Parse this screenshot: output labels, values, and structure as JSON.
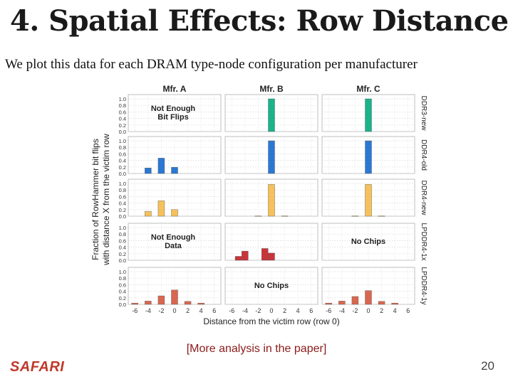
{
  "slide": {
    "title": "4. Spatial Effects: Row Distance",
    "subtitle": "We plot this data for each DRAM type-node configuration per manufacturer",
    "note": "[More analysis in the paper]",
    "logo": "SAFARI",
    "page_number": "20"
  },
  "chart_data": {
    "type": "bar",
    "xlabel": "Distance from the victim row (row 0)",
    "ylabel_lines": [
      "Fraction of RowHammer bit flips",
      "with distance X from the victim row"
    ],
    "columns": [
      "Mfr. A",
      "Mfr. B",
      "Mfr. C"
    ],
    "rows": [
      "DDR3-new",
      "DDR4-old",
      "DDR4-new",
      "LPDDR4-1x",
      "LPDDR4-1y"
    ],
    "x_ticks": [
      -6,
      -4,
      -2,
      0,
      2,
      4,
      6
    ],
    "y_ticks": [
      "0.0",
      "0.2",
      "0.4",
      "0.6",
      "0.8",
      "1.0"
    ],
    "ylim": [
      0,
      1
    ],
    "row_colors": [
      "#1ab38a",
      "#2b78d4",
      "#f6c15a",
      "#c9343a",
      "#d9674f"
    ],
    "panels": [
      {
        "row": 0,
        "col": 0,
        "message": [
          "Not Enough",
          "Bit Flips"
        ],
        "bars": []
      },
      {
        "row": 0,
        "col": 1,
        "bars": [
          [
            0,
            1.0
          ]
        ]
      },
      {
        "row": 0,
        "col": 2,
        "bars": [
          [
            0,
            1.0
          ]
        ]
      },
      {
        "row": 1,
        "col": 0,
        "bars": [
          [
            -4,
            0.17
          ],
          [
            -2,
            0.47
          ],
          [
            0,
            0.19
          ]
        ]
      },
      {
        "row": 1,
        "col": 1,
        "bars": [
          [
            0,
            1.0
          ]
        ]
      },
      {
        "row": 1,
        "col": 2,
        "bars": [
          [
            0,
            1.0
          ]
        ]
      },
      {
        "row": 2,
        "col": 0,
        "bars": [
          [
            -4,
            0.15
          ],
          [
            -2,
            0.47
          ],
          [
            0,
            0.2
          ]
        ]
      },
      {
        "row": 2,
        "col": 1,
        "bars": [
          [
            -2,
            0.01
          ],
          [
            0,
            0.97
          ],
          [
            2,
            0.01
          ]
        ]
      },
      {
        "row": 2,
        "col": 2,
        "bars": [
          [
            -2,
            0.01
          ],
          [
            0,
            0.97
          ],
          [
            2,
            0.01
          ]
        ]
      },
      {
        "row": 3,
        "col": 0,
        "message": [
          "Not Enough",
          "Data"
        ],
        "bars": []
      },
      {
        "row": 3,
        "col": 1,
        "bars": [
          [
            -5,
            0.12
          ],
          [
            -4,
            0.28
          ],
          [
            -1,
            0.36
          ],
          [
            0,
            0.22
          ]
        ]
      },
      {
        "row": 3,
        "col": 2,
        "message": [
          "No Chips"
        ],
        "bars": []
      },
      {
        "row": 4,
        "col": 0,
        "bars": [
          [
            -6,
            0.04
          ],
          [
            -4,
            0.1
          ],
          [
            -2,
            0.26
          ],
          [
            0,
            0.44
          ],
          [
            2,
            0.09
          ],
          [
            4,
            0.04
          ]
        ]
      },
      {
        "row": 4,
        "col": 1,
        "message": [
          "No Chips"
        ],
        "bars": []
      },
      {
        "row": 4,
        "col": 2,
        "bars": [
          [
            -6,
            0.04
          ],
          [
            -4,
            0.1
          ],
          [
            -2,
            0.24
          ],
          [
            0,
            0.42
          ],
          [
            2,
            0.09
          ],
          [
            4,
            0.04
          ]
        ]
      }
    ]
  }
}
